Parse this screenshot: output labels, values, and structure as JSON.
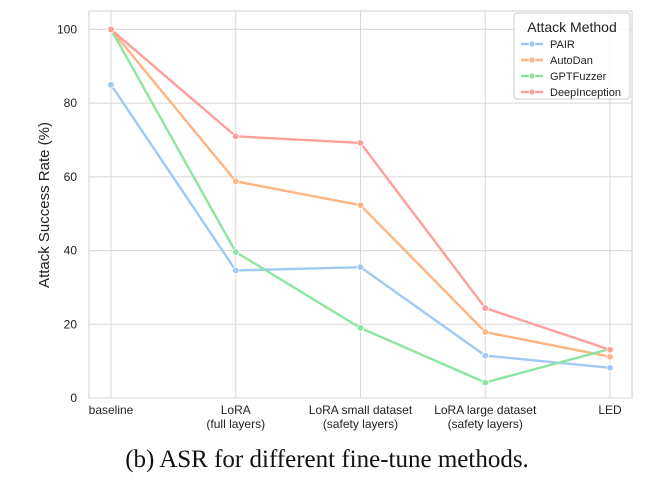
{
  "caption": "(b)  ASR for different fine-tune methods.",
  "chart_data": {
    "type": "line",
    "title": "",
    "xlabel": "",
    "ylabel": "Attack Success Rate (%)",
    "ylim": [
      0,
      105
    ],
    "yticks": [
      0,
      20,
      40,
      60,
      80,
      100
    ],
    "categories": [
      [
        "baseline"
      ],
      [
        "LoRA",
        "(full layers)"
      ],
      [
        "LoRA small dataset",
        "(safety layers)"
      ],
      [
        "LoRA large dataset",
        "(safety layers)"
      ],
      [
        "LED"
      ]
    ],
    "grid": true,
    "legend": {
      "title": "Attack Method",
      "position": "top-right"
    },
    "series": [
      {
        "name": "PAIR",
        "color": "#a1c9f4",
        "values": [
          85,
          34.6,
          35.5,
          11.5,
          8.2
        ]
      },
      {
        "name": "AutoDan",
        "color": "#ffb482",
        "values": [
          100,
          58.8,
          52.3,
          17.9,
          11.2
        ]
      },
      {
        "name": "GPTFuzzer",
        "color": "#8de5a1",
        "values": [
          100,
          39.6,
          19.0,
          4.2,
          13.3
        ]
      },
      {
        "name": "DeepInception",
        "color": "#ff9f9b",
        "values": [
          100,
          71.0,
          69.2,
          24.4,
          13.1
        ]
      }
    ]
  }
}
